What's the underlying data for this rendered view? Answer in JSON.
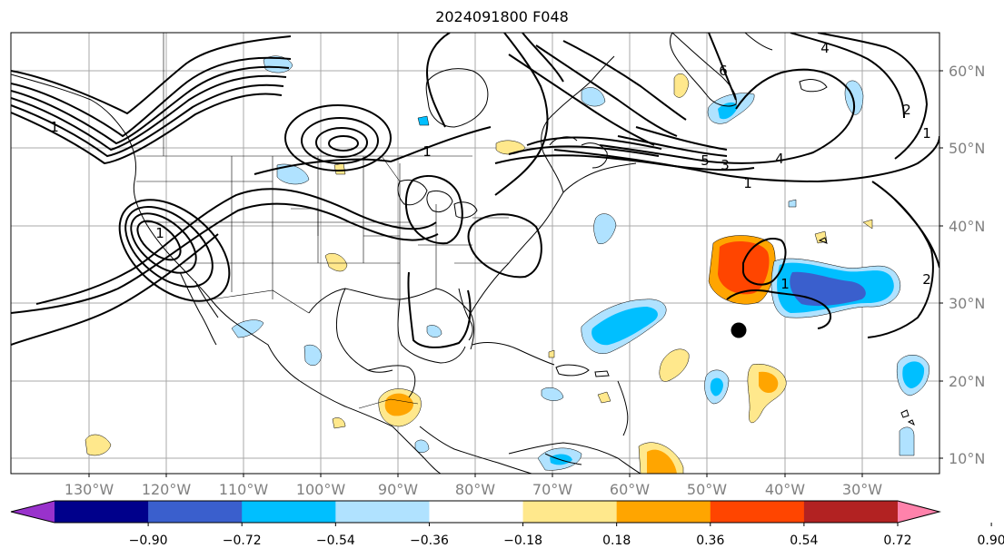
{
  "title": "2024091800 F048",
  "lon_labels": [
    "130°W",
    "120°W",
    "110°W",
    "100°W",
    "90°W",
    "80°W",
    "70°W",
    "60°W",
    "50°W",
    "40°W",
    "30°W"
  ],
  "lat_labels": [
    "60°N",
    "50°N",
    "40°N",
    "30°N",
    "20°N",
    "10°N"
  ],
  "colorbar": {
    "colors": [
      "#9932cc",
      "#00008b",
      "#3a5fcd",
      "#00bfff",
      "#b0e2ff",
      "#ffffff",
      "#ffe88c",
      "#ffa500",
      "#ff4500",
      "#b22222",
      "#ff82ab"
    ],
    "ticks": [
      "−0.90",
      "−0.72",
      "−0.54",
      "−0.36",
      "−0.18",
      "0.18",
      "0.36",
      "0.54",
      "0.72",
      "0.90"
    ]
  },
  "contour_labels": [
    "1",
    "1",
    "1",
    "1",
    "2",
    "3",
    "4",
    "4",
    "5",
    "6",
    "1",
    "2",
    "1"
  ],
  "marker": "storm-position-dot"
}
